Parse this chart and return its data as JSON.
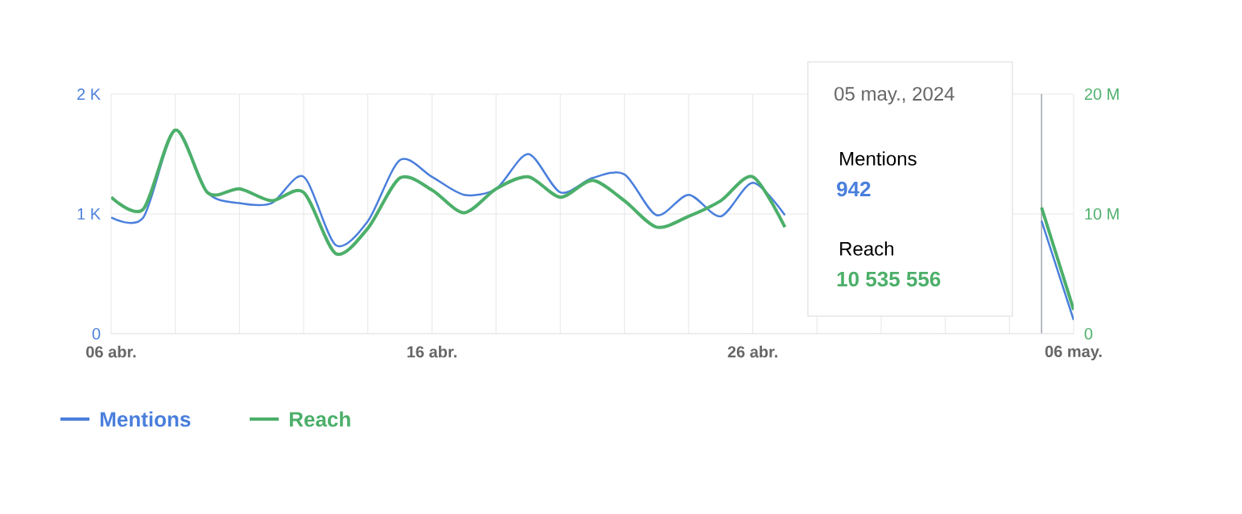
{
  "chart_data": {
    "type": "line",
    "x": [
      "2024-04-06",
      "2024-04-07",
      "2024-04-08",
      "2024-04-09",
      "2024-04-10",
      "2024-04-11",
      "2024-04-12",
      "2024-04-13",
      "2024-04-14",
      "2024-04-15",
      "2024-04-16",
      "2024-04-17",
      "2024-04-18",
      "2024-04-19",
      "2024-04-20",
      "2024-04-21",
      "2024-04-22",
      "2024-04-23",
      "2024-04-24",
      "2024-04-25",
      "2024-04-26",
      "2024-04-27",
      "2024-04-28",
      "2024-04-29",
      "2024-04-30",
      "2024-05-01",
      "2024-05-02",
      "2024-05-03",
      "2024-05-04",
      "2024-05-05",
      "2024-05-06"
    ],
    "series": [
      {
        "name": "Mentions",
        "color": "#4a7fdc",
        "values": [
          970,
          970,
          1700,
          1180,
          1090,
          1090,
          1310,
          740,
          940,
          1450,
          1310,
          1160,
          1210,
          1500,
          1180,
          1300,
          1330,
          990,
          1160,
          980,
          1260,
          990,
          null,
          null,
          null,
          null,
          null,
          null,
          null,
          942,
          115
        ]
      },
      {
        "name": "Reach",
        "color": "#4caf6a",
        "axis": "y2",
        "values": [
          11400000,
          10400000,
          17000000,
          11800000,
          12100000,
          11100000,
          11800000,
          6700000,
          8800000,
          13000000,
          12000000,
          10100000,
          12100000,
          13100000,
          11400000,
          12800000,
          11100000,
          8900000,
          9800000,
          11100000,
          13100000,
          8900000,
          null,
          null,
          null,
          null,
          null,
          null,
          null,
          10535556,
          2000000
        ]
      }
    ],
    "xlim": [
      "2024-04-06",
      "2024-05-06"
    ],
    "xticks": [
      {
        "value": "2024-04-06",
        "label": "06 abr."
      },
      {
        "value": "2024-04-08",
        "label": null
      },
      {
        "value": "2024-04-10",
        "label": null
      },
      {
        "value": "2024-04-12",
        "label": null
      },
      {
        "value": "2024-04-14",
        "label": null
      },
      {
        "value": "2024-04-16",
        "label": "16 abr."
      },
      {
        "value": "2024-04-18",
        "label": null
      },
      {
        "value": "2024-04-20",
        "label": null
      },
      {
        "value": "2024-04-22",
        "label": null
      },
      {
        "value": "2024-04-24",
        "label": null
      },
      {
        "value": "2024-04-26",
        "label": "26 abr."
      },
      {
        "value": "2024-04-28",
        "label": null
      },
      {
        "value": "2024-04-30",
        "label": null
      },
      {
        "value": "2024-05-02",
        "label": null
      },
      {
        "value": "2024-05-04",
        "label": null
      },
      {
        "value": "2024-05-06",
        "label": "06 may."
      }
    ],
    "ylim": [
      0,
      2000
    ],
    "yticks": [
      0,
      {
        "value": 1000,
        "label": "1 K"
      },
      {
        "value": 2000,
        "label": "2 K"
      }
    ],
    "y2lim": [
      0,
      20000000
    ],
    "y2ticks": [
      0,
      {
        "value": 10000000,
        "label": "10 M"
      },
      {
        "value": 20000000,
        "label": "20 M"
      }
    ],
    "ref_lines": [
      {
        "axis": "x",
        "value": "2024-05-05",
        "color": "#a0a4ab"
      }
    ],
    "annotations": [
      "05 may., 2024",
      "Mentions",
      "942",
      "Reach",
      "10 535 556"
    ],
    "grid": true,
    "legend": "bottom left",
    "line_style": "solid"
  }
}
